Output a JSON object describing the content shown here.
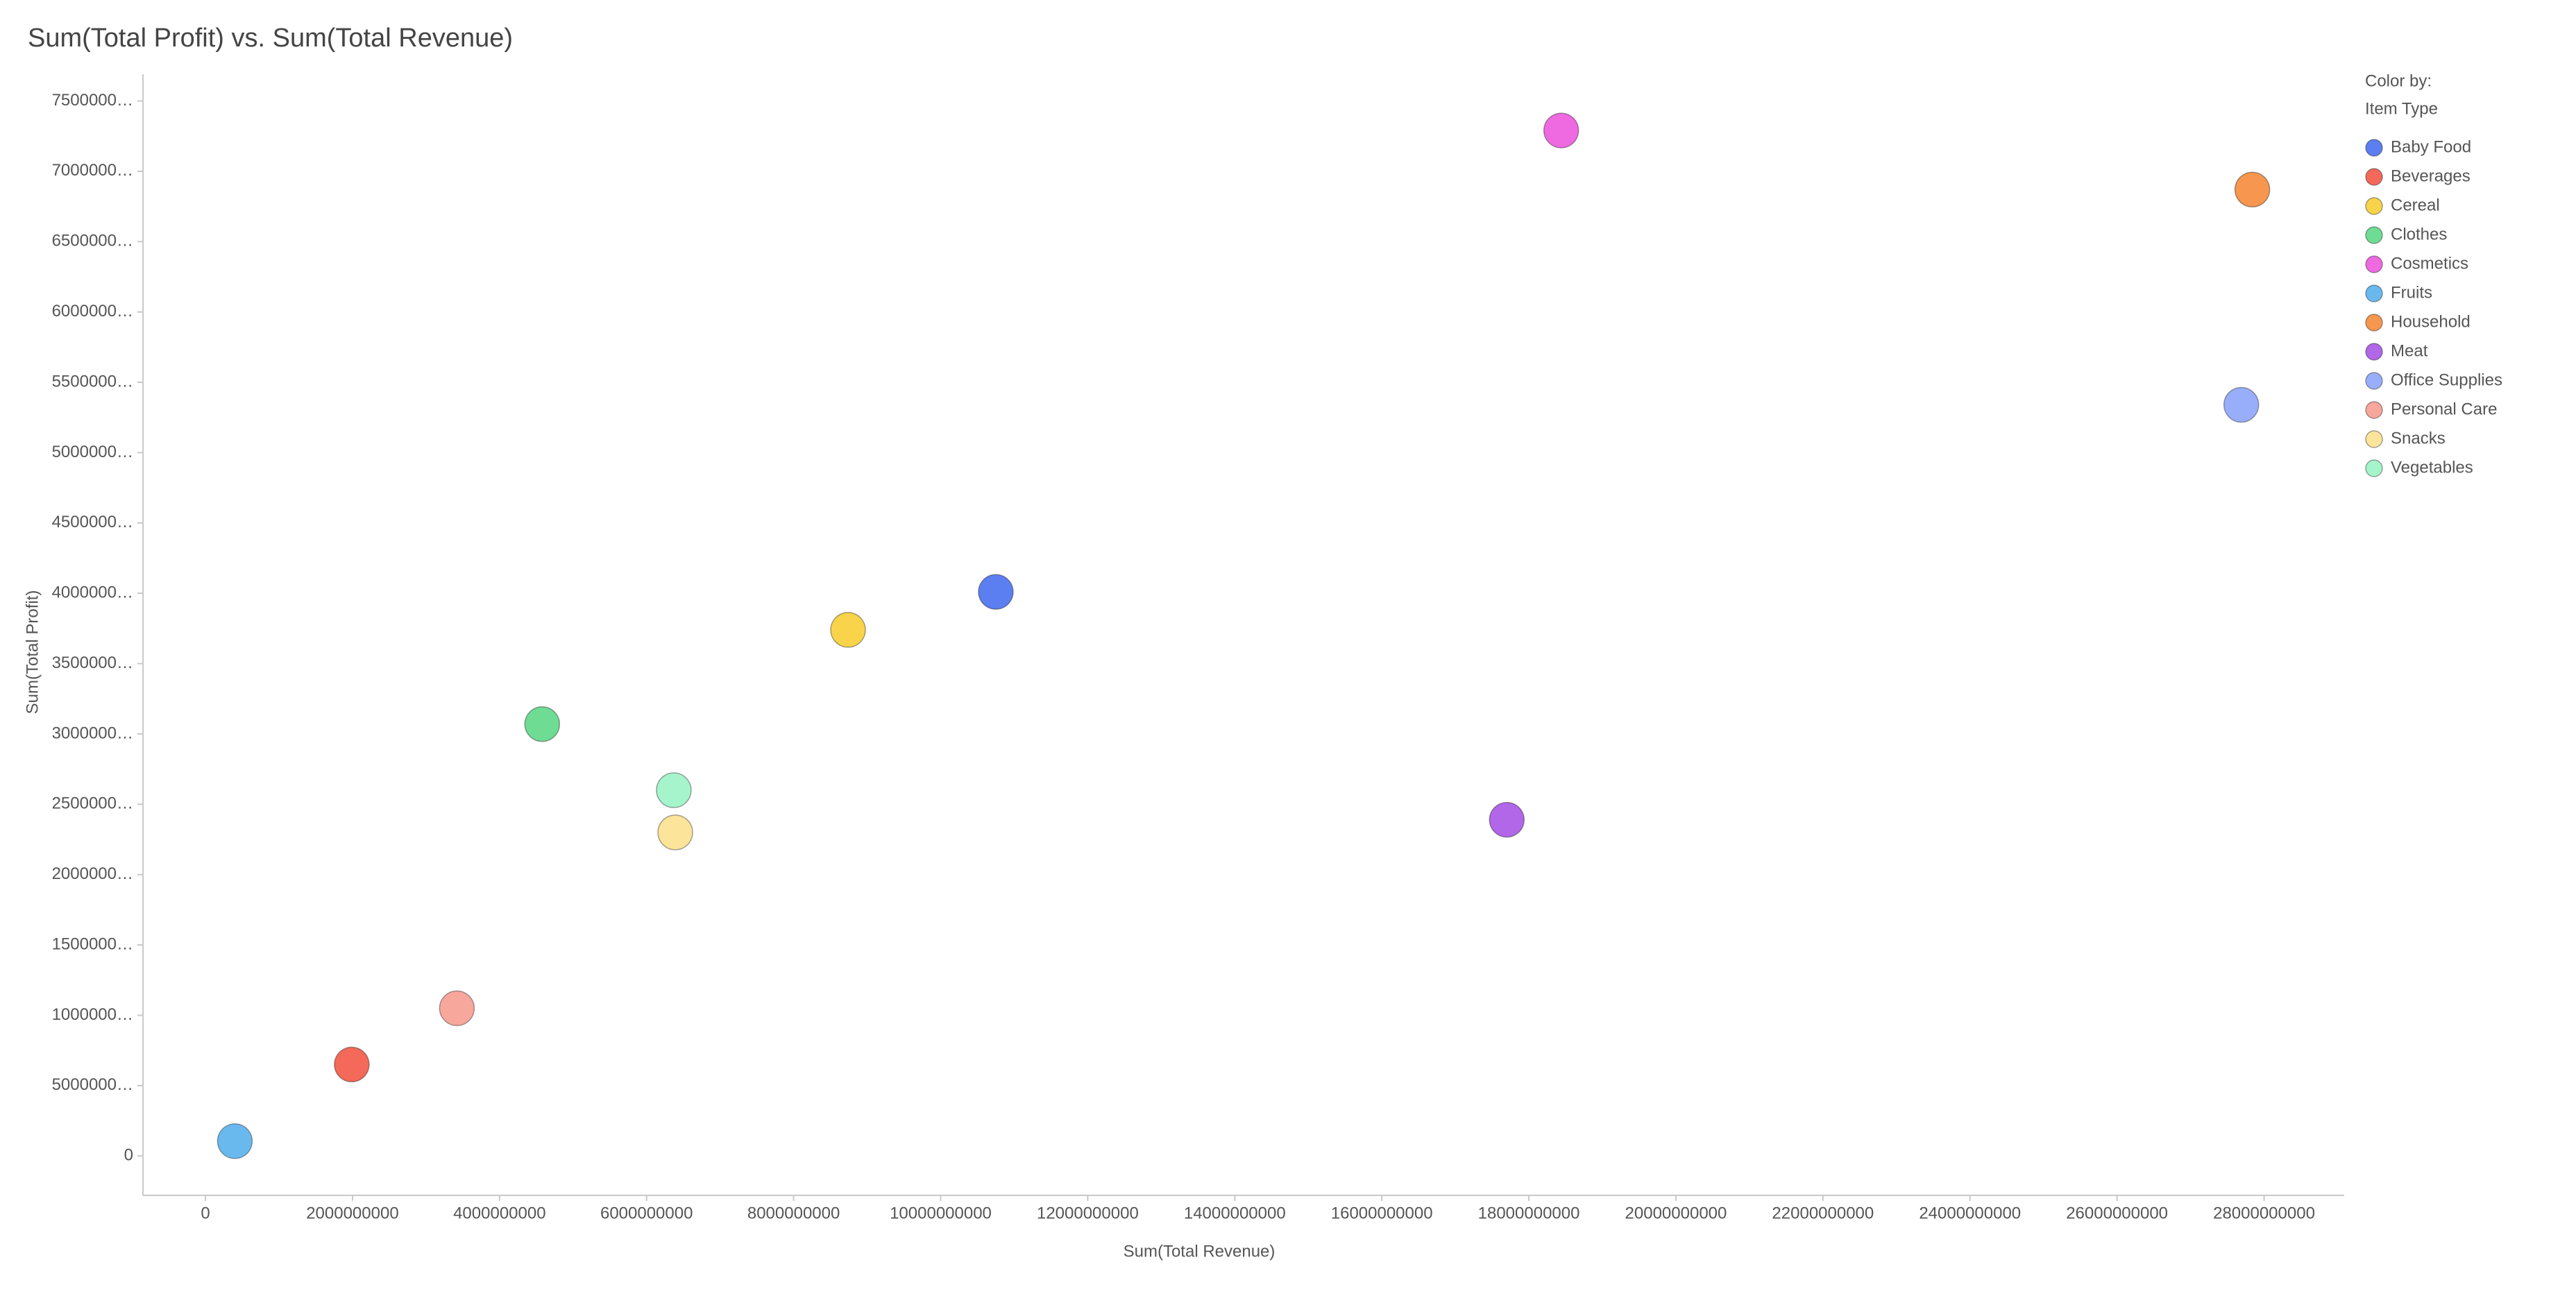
{
  "chart_data": {
    "type": "scatter",
    "title": "Sum(Total Profit) vs. Sum(Total Revenue)",
    "x_label": "Sum(Total Revenue)",
    "y_label": "Sum(Total Profit)",
    "legend_title": "Color by:",
    "legend_subtitle": "Item Type",
    "legend": "right",
    "xlim": [
      -850000000,
      29090000000
    ],
    "ylim": [
      -280000000,
      7690000000
    ],
    "xticks": [
      0,
      2000000000,
      4000000000,
      6000000000,
      8000000000,
      10000000000,
      12000000000,
      14000000000,
      16000000000,
      18000000000,
      20000000000,
      22000000000,
      24000000000,
      26000000000,
      28000000000
    ],
    "yticks": [
      0,
      {
        "value": 500000000,
        "label": "5000000…"
      },
      {
        "value": 1000000000,
        "label": "1000000…"
      },
      {
        "value": 1500000000,
        "label": "1500000…"
      },
      {
        "value": 2000000000,
        "label": "2000000…"
      },
      {
        "value": 2500000000,
        "label": "2500000…"
      },
      {
        "value": 3000000000,
        "label": "3000000…"
      },
      {
        "value": 3500000000,
        "label": "3500000…"
      },
      {
        "value": 4000000000,
        "label": "4000000…"
      },
      {
        "value": 4500000000,
        "label": "4500000…"
      },
      {
        "value": 5000000000,
        "label": "5000000…"
      },
      {
        "value": 5500000000,
        "label": "5500000…"
      },
      {
        "value": 6000000000,
        "label": "6000000…"
      },
      {
        "value": 6500000000,
        "label": "6500000…"
      },
      {
        "value": 7000000000,
        "label": "7000000…"
      },
      {
        "value": 7500000000,
        "label": "7500000…"
      }
    ],
    "series": [
      {
        "name": "Baby Food",
        "color": "#5b7ff0",
        "x": [
          10750000000
        ],
        "values": [
          4010000000
        ]
      },
      {
        "name": "Beverages",
        "color": "#f4695a",
        "x": [
          1990000000
        ],
        "values": [
          650000000
        ]
      },
      {
        "name": "Cereal",
        "color": "#f9d44a",
        "x": [
          8740000000
        ],
        "values": [
          3740000000
        ]
      },
      {
        "name": "Clothes",
        "color": "#6fdc94",
        "x": [
          4580000000
        ],
        "values": [
          3070000000
        ]
      },
      {
        "name": "Cosmetics",
        "color": "#ef6ae0",
        "x": [
          18440000000
        ],
        "values": [
          7290000000
        ]
      },
      {
        "name": "Fruits",
        "color": "#6ab9ee",
        "x": [
          400000000
        ],
        "values": [
          105000000
        ]
      },
      {
        "name": "Household",
        "color": "#f7964e",
        "x": [
          27840000000
        ],
        "values": [
          6870000000
        ]
      },
      {
        "name": "Meat",
        "color": "#b167e8",
        "x": [
          17700000000
        ],
        "values": [
          2390000000
        ]
      },
      {
        "name": "Office Supplies",
        "color": "#98aefa",
        "x": [
          27690000000
        ],
        "values": [
          5340000000
        ]
      },
      {
        "name": "Personal Care",
        "color": "#f7a79c",
        "x": [
          3420000000
        ],
        "values": [
          1050000000
        ]
      },
      {
        "name": "Snacks",
        "color": "#fde49b",
        "x": [
          6390000000
        ],
        "values": [
          2300000000
        ]
      },
      {
        "name": "Vegetables",
        "color": "#a6f4cc",
        "x": [
          6370000000
        ],
        "values": [
          2600000000
        ]
      }
    ]
  }
}
